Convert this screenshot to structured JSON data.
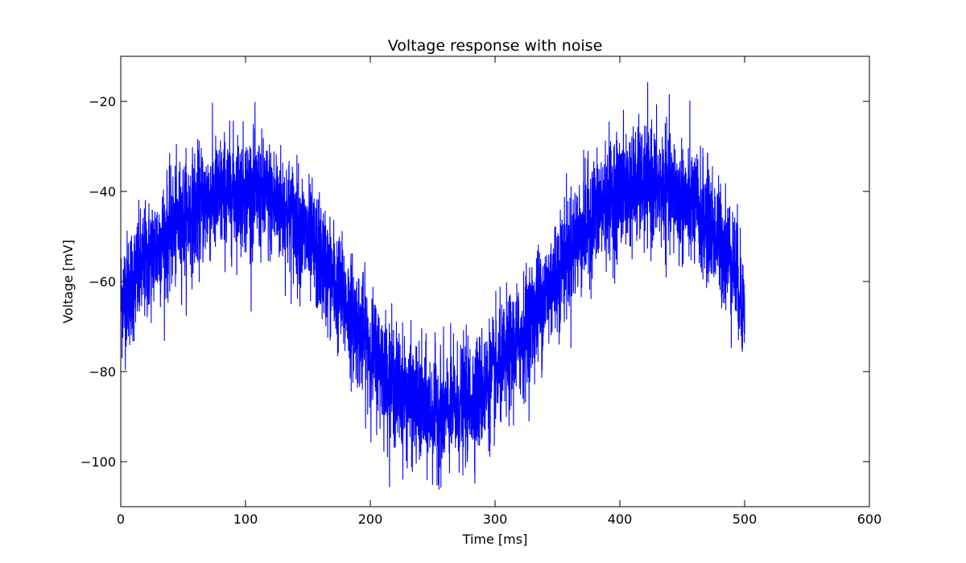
{
  "chart_data": {
    "type": "line",
    "title": "Voltage response with noise",
    "xlabel": "Time [ms]",
    "ylabel": "Voltage [mV]",
    "xlim": [
      0,
      600
    ],
    "ylim": [
      -110,
      -10
    ],
    "xticks": [
      0,
      100,
      200,
      300,
      400,
      500,
      600
    ],
    "xtick_labels": [
      "0",
      "100",
      "200",
      "300",
      "400",
      "500",
      "600"
    ],
    "yticks": [
      -20,
      -40,
      -60,
      -80,
      -100
    ],
    "ytick_labels": [
      "−20",
      "−40",
      "−60",
      "−80",
      "−100"
    ],
    "grid": false,
    "series": [
      {
        "color": "#0000ff",
        "x": [
          0,
          10,
          20,
          30,
          40,
          50,
          60,
          70,
          80,
          90,
          100,
          110,
          120,
          130,
          140,
          150,
          160,
          170,
          180,
          190,
          200,
          210,
          220,
          230,
          240,
          250,
          260,
          270,
          280,
          290,
          300,
          310,
          320,
          330,
          340,
          350,
          360,
          370,
          380,
          390,
          400,
          410,
          420,
          430,
          440,
          450,
          460,
          470,
          480,
          490,
          500
        ],
        "values": [
          -64,
          -60,
          -56,
          -52,
          -49,
          -46,
          -44,
          -42,
          -41,
          -40,
          -40,
          -41,
          -42,
          -44,
          -47,
          -51,
          -55,
          -60,
          -65,
          -70,
          -75,
          -79,
          -83,
          -86,
          -88,
          -89,
          -89,
          -88,
          -86,
          -84,
          -81,
          -77,
          -73,
          -68,
          -63,
          -58,
          -53,
          -49,
          -45,
          -42,
          -40,
          -39,
          -39,
          -39,
          -40,
          -42,
          -44,
          -47,
          -51,
          -55,
          -66
        ],
        "noise_sd": 6.5
      }
    ]
  }
}
